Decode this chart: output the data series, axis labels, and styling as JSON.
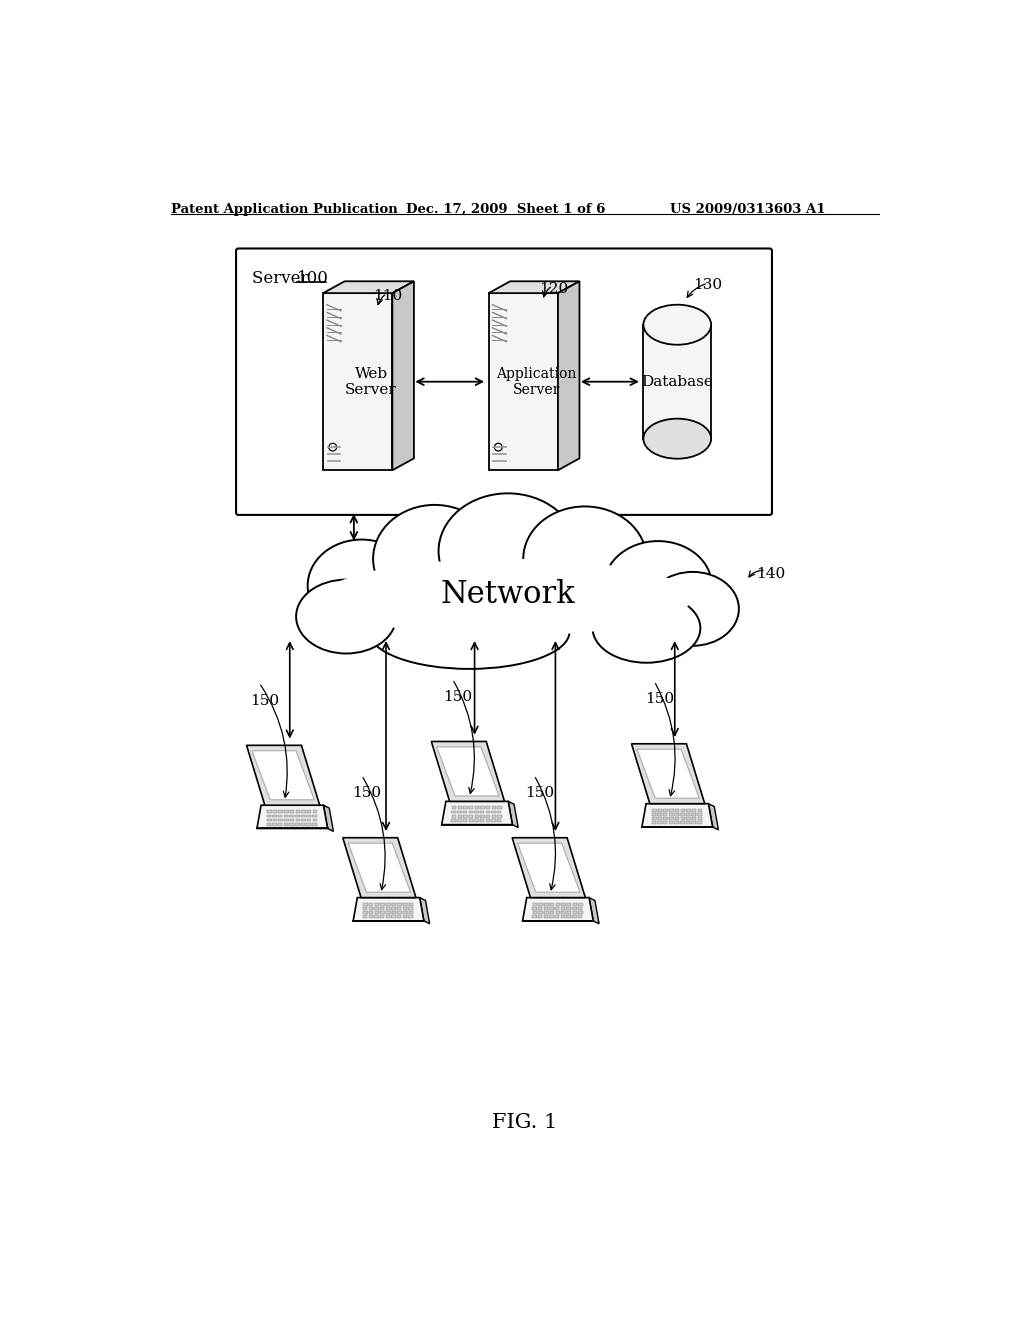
{
  "bg_color": "#ffffff",
  "header_left": "Patent Application Publication",
  "header_mid": "Dec. 17, 2009  Sheet 1 of 6",
  "header_right": "US 2009/0313603 A1",
  "fig_label": "FIG. 1",
  "server_box_label": "Server",
  "server_box_num": "100",
  "node_110_label": "110",
  "node_120_label": "120",
  "node_130_label": "130",
  "node_140_label": "140",
  "node_150_label": "150",
  "web_server_label": "Web\nServer",
  "app_server_label": "Application\nServer",
  "database_label": "Database",
  "network_label": "Network",
  "lc": "#000000",
  "fc_light": "#f5f5f5",
  "fc_mid": "#e0e0e0",
  "fc_dark": "#c8c8c8"
}
